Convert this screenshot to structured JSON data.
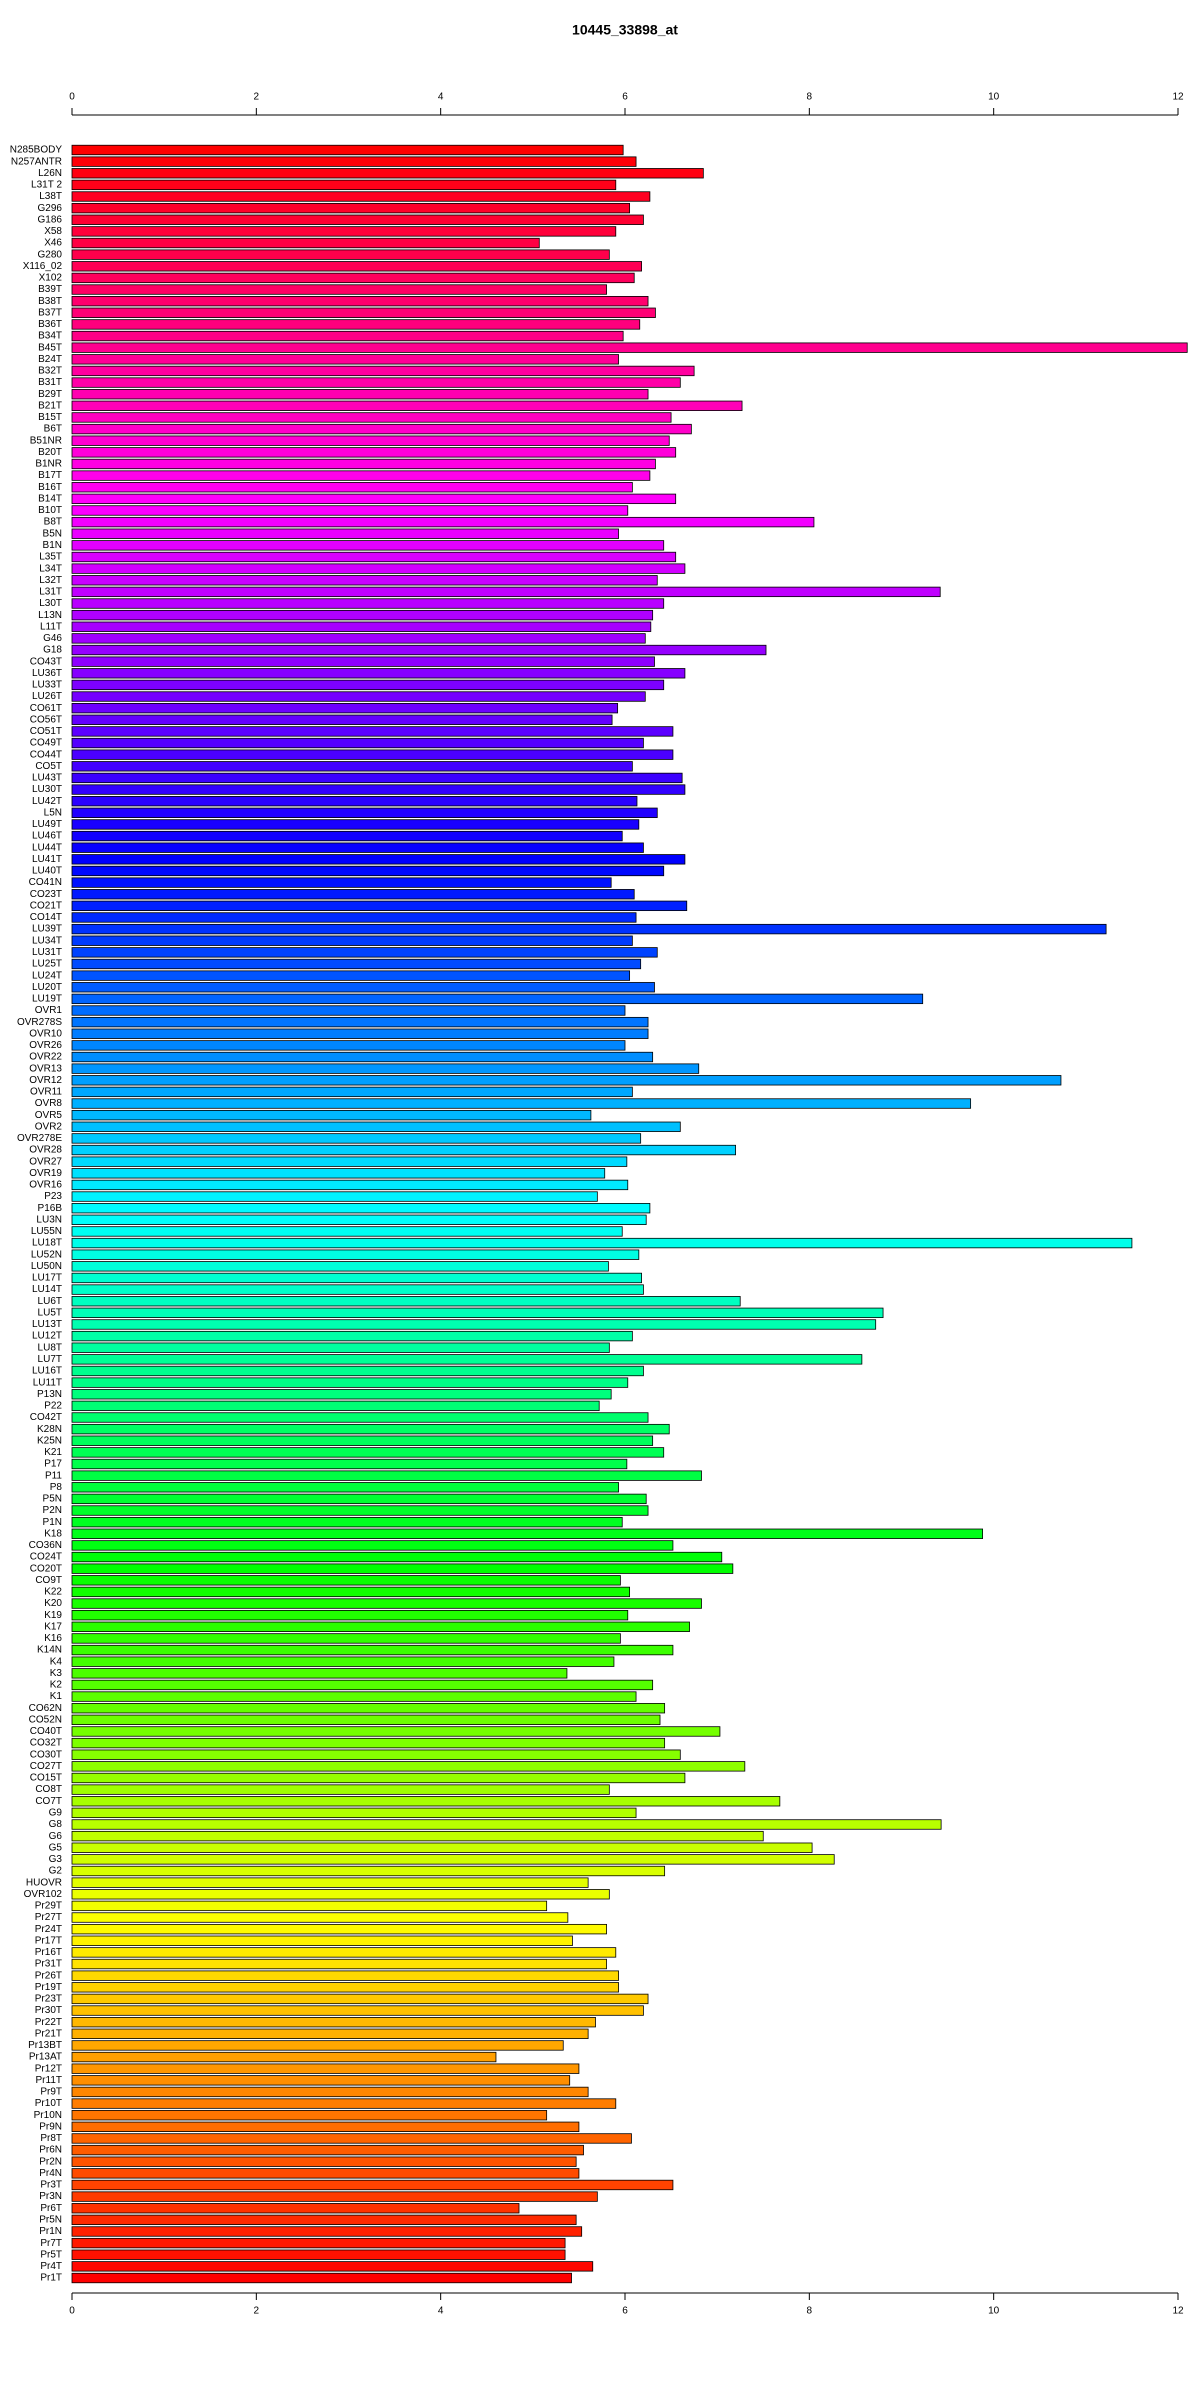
{
  "chart_data": {
    "type": "barh",
    "title": "10445_33898_at",
    "categories": [
      "N285BODY",
      "N257ANTR",
      "L26N",
      "L31T 2",
      "L38T",
      "G296",
      "G186",
      "X58",
      "X46",
      "G280",
      "X116_02",
      "X102",
      "B39T",
      "B38T",
      "B37T",
      "B36T",
      "B34T",
      "B45T",
      "B24T",
      "B32T",
      "B31T",
      "B29T",
      "B21T",
      "B15T",
      "B6T",
      "B51NR",
      "B20T",
      "B1NR",
      "B17T",
      "B16T",
      "B14T",
      "B10T",
      "B8T",
      "B5N",
      "B1N",
      "L35T",
      "L34T",
      "L32T",
      "L31T",
      "L30T",
      "L13N",
      "L11T",
      "G46",
      "G18",
      "CO43T",
      "LU36T",
      "LU33T",
      "LU26T",
      "CO61T",
      "CO56T",
      "CO51T",
      "CO49T",
      "CO44T",
      "CO5T",
      "LU43T",
      "LU30T",
      "LU42T",
      "L5N",
      "LU49T",
      "LU46T",
      "LU44T",
      "LU41T",
      "LU40T",
      "CO41N",
      "CO23T",
      "CO21T",
      "CO14T",
      "LU39T",
      "LU34T",
      "LU31T",
      "LU25T",
      "LU24T",
      "LU20T",
      "LU19T",
      "OVR1",
      "OVR278S",
      "OVR10",
      "OVR26",
      "OVR22",
      "OVR13",
      "OVR12",
      "OVR11",
      "OVR8",
      "OVR5",
      "OVR2",
      "OVR278E",
      "OVR28",
      "OVR27",
      "OVR19",
      "OVR16",
      "P23",
      "P16B",
      "LU3N",
      "LU55N",
      "LU18T",
      "LU52N",
      "LU50N",
      "LU17T",
      "LU14T",
      "LU6T",
      "LU5T",
      "LU13T",
      "LU12T",
      "LU8T",
      "LU7T",
      "LU16T",
      "LU11T",
      "P13N",
      "P22",
      "CO42T",
      "K28N",
      "K25N",
      "K21",
      "P17",
      "P11",
      "P8",
      "P5N",
      "P2N",
      "P1N",
      "K18",
      "CO36N",
      "CO24T",
      "CO20T",
      "CO9T",
      "K22",
      "K20",
      "K19",
      "K17",
      "K16",
      "K14N",
      "K4",
      "K3",
      "K2",
      "K1",
      "CO62N",
      "CO52N",
      "CO40T",
      "CO32T",
      "CO30T",
      "CO27T",
      "CO15T",
      "CO8T",
      "CO7T",
      "G9",
      "G8",
      "G6",
      "G5",
      "G3",
      "G2",
      "HUOVR",
      "OVR102",
      "Pr29T",
      "Pr27T",
      "Pr24T",
      "Pr17T",
      "Pr16T",
      "Pr31T",
      "Pr26T",
      "Pr19T",
      "Pr23T",
      "Pr30T",
      "Pr22T",
      "Pr21T",
      "Pr13BT",
      "Pr13AT",
      "Pr12T",
      "Pr11T",
      "Pr9T",
      "Pr10T",
      "Pr10N",
      "Pr9N",
      "Pr8T",
      "Pr6N",
      "Pr2N",
      "Pr4N",
      "Pr3T",
      "Pr3N",
      "Pr6T",
      "Pr5N",
      "Pr1N",
      "Pr7T",
      "Pr5T",
      "Pr4T",
      "Pr1T"
    ],
    "values": [
      5.98,
      6.12,
      6.85,
      5.9,
      6.27,
      6.05,
      6.2,
      5.9,
      5.07,
      5.83,
      6.18,
      6.1,
      5.8,
      6.25,
      6.33,
      6.16,
      5.98,
      12.1,
      5.93,
      6.75,
      6.6,
      6.25,
      7.27,
      6.5,
      6.72,
      6.48,
      6.55,
      6.33,
      6.27,
      6.08,
      6.55,
      6.03,
      8.05,
      5.93,
      6.42,
      6.55,
      6.65,
      6.35,
      9.42,
      6.42,
      6.3,
      6.28,
      6.22,
      7.53,
      6.32,
      6.65,
      6.42,
      6.22,
      5.92,
      5.86,
      6.52,
      6.2,
      6.52,
      6.08,
      6.62,
      6.65,
      6.13,
      6.35,
      6.15,
      5.97,
      6.2,
      6.65,
      6.42,
      5.85,
      6.1,
      6.67,
      6.12,
      11.22,
      6.08,
      6.35,
      6.17,
      6.05,
      6.32,
      9.23,
      6.0,
      6.25,
      6.25,
      6.0,
      6.3,
      6.8,
      10.73,
      6.08,
      9.75,
      5.63,
      6.6,
      6.17,
      7.2,
      6.02,
      5.78,
      6.03,
      5.7,
      6.27,
      6.23,
      5.97,
      11.5,
      6.15,
      5.82,
      6.18,
      6.2,
      7.25,
      8.8,
      8.72,
      6.08,
      5.83,
      8.57,
      6.2,
      6.03,
      5.85,
      5.72,
      6.25,
      6.48,
      6.3,
      6.42,
      6.02,
      6.83,
      5.93,
      6.23,
      6.25,
      5.97,
      9.88,
      6.52,
      7.05,
      7.17,
      5.95,
      6.05,
      6.83,
      6.03,
      6.7,
      5.95,
      6.52,
      5.88,
      5.37,
      6.3,
      6.12,
      6.43,
      6.38,
      7.03,
      6.43,
      6.6,
      7.3,
      6.65,
      5.83,
      7.68,
      6.12,
      9.43,
      7.5,
      8.03,
      8.27,
      6.43,
      5.6,
      5.83,
      5.15,
      5.38,
      5.8,
      5.43,
      5.9,
      5.8,
      5.93,
      5.93,
      6.25,
      6.2,
      5.68,
      5.6,
      5.33,
      4.6,
      5.5,
      5.4,
      5.6,
      5.9,
      5.15,
      5.5,
      6.07,
      5.55,
      5.47,
      5.5,
      6.52,
      5.7,
      4.85,
      5.47,
      5.53,
      5.35,
      5.35,
      5.65,
      5.42
    ],
    "color_stops": [
      "#ff0000",
      "#ff00ff",
      "#0000ff",
      "#00ffff",
      "#00ff00",
      "#ffff00",
      "#ff0000"
    ],
    "xlim": [
      0,
      12
    ],
    "xticks": [
      0,
      2,
      4,
      6,
      8,
      10,
      12
    ]
  }
}
